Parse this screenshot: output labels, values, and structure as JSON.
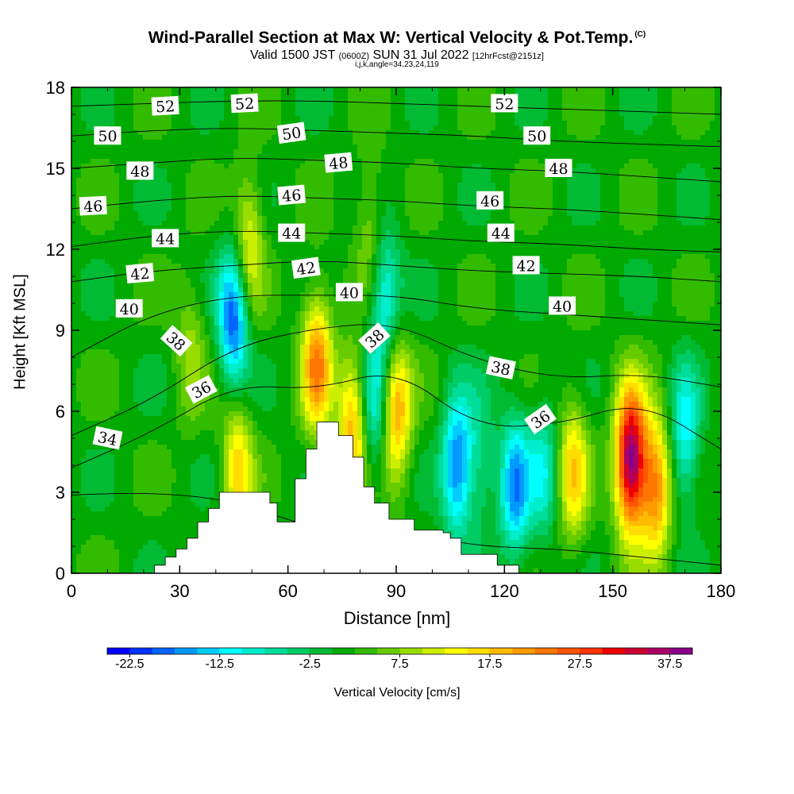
{
  "title": "Wind-Parallel Section at Max W: Vertical Velocity & Pot.Temp.",
  "title_mark": "(C)",
  "subtitle": {
    "valid": "Valid 1500 JST",
    "utc": "(0600Z)",
    "date": "SUN 31 Jul 2022",
    "fcst": "[12hrFcst@2151z]"
  },
  "indices": "i,j,k,angle=34,23,24,119",
  "chart_data": {
    "type": "heatmap",
    "xlabel": "Distance [nm]",
    "ylabel": "Height [Kft MSL]",
    "xlim": [
      0,
      180
    ],
    "ylim": [
      0,
      18
    ],
    "x_ticks": [
      "0",
      "30",
      "60",
      "90",
      "120",
      "150",
      "180"
    ],
    "y_ticks": [
      "0",
      "3",
      "6",
      "9",
      "12",
      "15",
      "18"
    ],
    "colorbar": {
      "label": "Vertical Velocity [cm/s]",
      "tick_labels": [
        "-22.5",
        "-12.5",
        "-2.5",
        "7.5",
        "17.5",
        "27.5",
        "37.5"
      ],
      "range": [
        -25,
        40
      ],
      "colors": [
        "#0000ff",
        "#0033ff",
        "#0066ff",
        "#0099ff",
        "#00ccff",
        "#00ffff",
        "#00eecc",
        "#00dd99",
        "#00cc66",
        "#00bb33",
        "#00aa00",
        "#33bb00",
        "#66cc00",
        "#99dd00",
        "#ccee00",
        "#ffff00",
        "#ffdd00",
        "#ffbb00",
        "#ff9900",
        "#ff7700",
        "#ff5500",
        "#ff3300",
        "#ee0000",
        "#cc0033",
        "#aa0066",
        "#880088"
      ]
    },
    "updrafts": [
      {
        "x": 46,
        "z": 3.9,
        "w": 15
      },
      {
        "x": 49,
        "z": 12.2,
        "w": 13
      },
      {
        "x": 68,
        "z": 7.8,
        "w": 21
      },
      {
        "x": 78,
        "z": 5.5,
        "w": 18
      },
      {
        "x": 90,
        "z": 6,
        "w": 19
      },
      {
        "x": 139,
        "z": 3.8,
        "w": 15
      },
      {
        "x": 155,
        "z": 4.2,
        "w": 38
      },
      {
        "x": 162,
        "z": 3.2,
        "w": 21
      },
      {
        "x": 33,
        "z": 8.3,
        "w": 7
      },
      {
        "x": 83,
        "z": 13,
        "w": 7
      },
      {
        "x": 112,
        "z": 3.5,
        "w": 7
      }
    ],
    "downdrafts": [
      {
        "x": 45,
        "z": 9.5,
        "w": -22
      },
      {
        "x": 107,
        "z": 4,
        "w": -20
      },
      {
        "x": 123,
        "z": 3.2,
        "w": -18
      },
      {
        "x": 113,
        "z": 3.8,
        "w": -13
      },
      {
        "x": 87,
        "z": 10.3,
        "w": -13
      },
      {
        "x": 84,
        "z": 6,
        "w": -12
      },
      {
        "x": 170,
        "z": 5,
        "w": -13
      },
      {
        "x": 131,
        "z": 3.8,
        "w": -10
      }
    ],
    "terrain": {
      "x": [
        0,
        20,
        23,
        26,
        29,
        32,
        35,
        38,
        41,
        51,
        55,
        57,
        60,
        62,
        65,
        68,
        71,
        74,
        78,
        81,
        84,
        88,
        90,
        93,
        95,
        100,
        103,
        105,
        108,
        115,
        118,
        122,
        124,
        180
      ],
      "z": [
        0,
        0,
        0.3,
        0.6,
        0.9,
        1.3,
        1.9,
        2.4,
        3,
        3,
        2.6,
        1.9,
        1.9,
        3.5,
        4.6,
        5.6,
        5.6,
        5.1,
        4.3,
        3.2,
        2.6,
        2.0,
        2.0,
        2.0,
        1.6,
        1.6,
        1.5,
        1.3,
        0.7,
        0.7,
        0.3,
        0.3,
        0,
        0
      ]
    },
    "theta_contours": [
      {
        "value": "34",
        "z": [
          2.9,
          3.0,
          2.7,
          1.6,
          1.6,
          1.0,
          0.9,
          0.6,
          0.3
        ]
      },
      {
        "value": "36",
        "z": [
          3.9,
          5.2,
          7.0,
          6.8,
          7.6,
          5.4,
          5.5,
          6.4,
          4.6
        ]
      },
      {
        "value": "38",
        "z": [
          5.1,
          6.4,
          8.4,
          9.1,
          9.3,
          7.9,
          7.2,
          7.4,
          6.9
        ]
      },
      {
        "value": "40",
        "z": [
          8.0,
          9.6,
          10.3,
          10.3,
          10.3,
          9.8,
          9.6,
          9.4,
          9.2
        ]
      },
      {
        "value": "42",
        "z": [
          10.8,
          11.2,
          11.4,
          11.6,
          11.4,
          11.2,
          11.1,
          11.0,
          10.8
        ]
      },
      {
        "value": "44",
        "z": [
          12.1,
          12.5,
          12.7,
          12.6,
          12.5,
          12.3,
          12.2,
          12.0,
          11.9
        ]
      },
      {
        "value": "46",
        "z": [
          13.5,
          13.8,
          14.0,
          13.9,
          13.8,
          13.6,
          13.5,
          13.3,
          13.1
        ]
      },
      {
        "value": "48",
        "z": [
          15.0,
          15.2,
          15.4,
          15.3,
          15.2,
          15.0,
          14.9,
          14.7,
          14.5
        ]
      },
      {
        "value": "50",
        "z": [
          16.2,
          16.4,
          16.5,
          16.4,
          16.3,
          16.2,
          16.0,
          15.9,
          15.8
        ]
      },
      {
        "value": "52",
        "z": [
          17.3,
          17.4,
          17.5,
          17.5,
          17.4,
          17.3,
          17.2,
          17.1,
          17.0
        ]
      }
    ],
    "contour_x": [
      0,
      22,
      45,
      68,
      90,
      112,
      135,
      158,
      180
    ],
    "contour_labels": [
      {
        "text": "52",
        "x": 26,
        "z": 17.3,
        "angle": -3
      },
      {
        "text": "52",
        "x": 48,
        "z": 17.4,
        "angle": -3
      },
      {
        "text": "52",
        "x": 120,
        "z": 17.4,
        "angle": 0
      },
      {
        "text": "50",
        "x": 10,
        "z": 16.2,
        "angle": 0
      },
      {
        "text": "50",
        "x": 61,
        "z": 16.3,
        "angle": -8
      },
      {
        "text": "50",
        "x": 129,
        "z": 16.2,
        "angle": 0
      },
      {
        "text": "48",
        "x": 19,
        "z": 14.9,
        "angle": 0
      },
      {
        "text": "48",
        "x": 74,
        "z": 15.2,
        "angle": -5
      },
      {
        "text": "48",
        "x": 135,
        "z": 15.0,
        "angle": 0
      },
      {
        "text": "46",
        "x": 6,
        "z": 13.6,
        "angle": -3
      },
      {
        "text": "46",
        "x": 61,
        "z": 14.0,
        "angle": -5
      },
      {
        "text": "46",
        "x": 116,
        "z": 13.8,
        "angle": 0
      },
      {
        "text": "44",
        "x": 26,
        "z": 12.4,
        "angle": 0
      },
      {
        "text": "44",
        "x": 61,
        "z": 12.6,
        "angle": 0
      },
      {
        "text": "44",
        "x": 119,
        "z": 12.6,
        "angle": 0
      },
      {
        "text": "42",
        "x": 19,
        "z": 11.1,
        "angle": -5
      },
      {
        "text": "42",
        "x": 65,
        "z": 11.3,
        "angle": -8
      },
      {
        "text": "42",
        "x": 126,
        "z": 11.4,
        "angle": 0
      },
      {
        "text": "40",
        "x": 16,
        "z": 9.8,
        "angle": 0
      },
      {
        "text": "40",
        "x": 77,
        "z": 10.4,
        "angle": 0
      },
      {
        "text": "40",
        "x": 136,
        "z": 9.9,
        "angle": 0
      },
      {
        "text": "38",
        "x": 29,
        "z": 8.6,
        "angle": 42
      },
      {
        "text": "38",
        "x": 84,
        "z": 8.7,
        "angle": -42
      },
      {
        "text": "38",
        "x": 119,
        "z": 7.6,
        "angle": 12
      },
      {
        "text": "36",
        "x": 36,
        "z": 6.8,
        "angle": -28
      },
      {
        "text": "36",
        "x": 130,
        "z": 5.7,
        "angle": -35
      },
      {
        "text": "34",
        "x": 10,
        "z": 5.0,
        "angle": 12
      }
    ]
  }
}
